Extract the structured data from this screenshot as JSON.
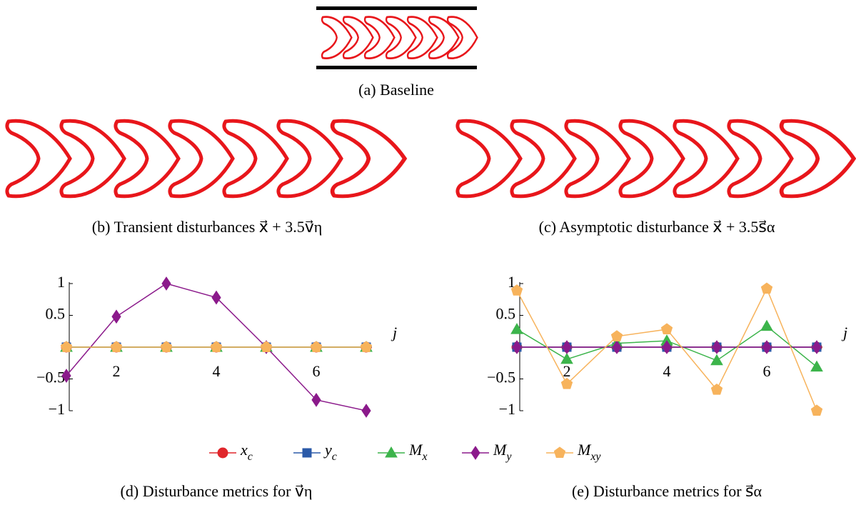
{
  "figures": [
    {
      "caption": "(a) Baseline"
    },
    {
      "caption": "(b) Transient disturbances x⃗ + 3.5v⃗η"
    },
    {
      "caption": "(c) Asymptotic disturbance x⃗ + 3.5s⃗α"
    }
  ],
  "chart_data": [
    {
      "type": "line",
      "caption": "(d) Disturbance metrics for v⃗η",
      "x_label": "j",
      "xlim": [
        1,
        7
      ],
      "xticks": [
        2,
        4,
        6
      ],
      "ylim": [
        -1,
        1
      ],
      "yticks": [
        {
          "value": -1,
          "label": "−1"
        },
        {
          "value": -0.5,
          "label": "−0.5"
        },
        0.5,
        1
      ],
      "x": [
        1,
        2,
        3,
        4,
        5,
        6,
        7
      ],
      "legend": "bottom",
      "series": [
        {
          "name": "xc",
          "color": "#e0262b",
          "marker": "circle",
          "values": [
            0,
            0,
            0,
            0,
            0,
            0,
            0
          ]
        },
        {
          "name": "yc",
          "color": "#2b5aa8",
          "marker": "square",
          "values": [
            0,
            0,
            0,
            0,
            0,
            0,
            0
          ]
        },
        {
          "name": "Mx",
          "color": "#3cb44b",
          "marker": "triangle",
          "values": [
            0,
            0,
            0,
            0,
            0,
            0,
            0
          ]
        },
        {
          "name": "My",
          "color": "#8b1a8b",
          "marker": "diamond",
          "values": [
            -0.45,
            0.48,
            1,
            0.78,
            0,
            -0.83,
            -1
          ]
        },
        {
          "name": "Mxy",
          "color": "#f7b35c",
          "marker": "pentagon",
          "values": [
            0,
            0,
            0,
            0,
            0,
            0,
            0
          ]
        }
      ]
    },
    {
      "type": "line",
      "caption": "(e) Disturbance metrics for s⃗α",
      "x_label": "j",
      "xlim": [
        1,
        7
      ],
      "xticks": [
        2,
        4,
        6
      ],
      "ylim": [
        -1,
        1
      ],
      "yticks": [
        {
          "value": -1,
          "label": "−1"
        },
        {
          "value": -0.5,
          "label": "−0.5"
        },
        0.5,
        1
      ],
      "x": [
        1,
        2,
        3,
        4,
        5,
        6,
        7
      ],
      "series": [
        {
          "name": "xc",
          "color": "#e0262b",
          "marker": "circle",
          "values": [
            0,
            0,
            0,
            0,
            0,
            0,
            0
          ]
        },
        {
          "name": "yc",
          "color": "#2b5aa8",
          "marker": "square",
          "values": [
            0,
            0,
            0,
            0,
            0,
            0,
            0
          ]
        },
        {
          "name": "Mx",
          "color": "#3cb44b",
          "marker": "triangle",
          "values": [
            0.28,
            -0.19,
            0.06,
            0.1,
            -0.21,
            0.33,
            -0.31
          ]
        },
        {
          "name": "My",
          "color": "#8b1a8b",
          "marker": "diamond",
          "values": [
            0,
            0,
            0,
            0,
            0,
            0,
            0
          ]
        },
        {
          "name": "Mxy",
          "color": "#f7b35c",
          "marker": "pentagon",
          "values": [
            0.89,
            -0.58,
            0.17,
            0.28,
            -0.67,
            0.92,
            -1
          ]
        }
      ]
    }
  ]
}
